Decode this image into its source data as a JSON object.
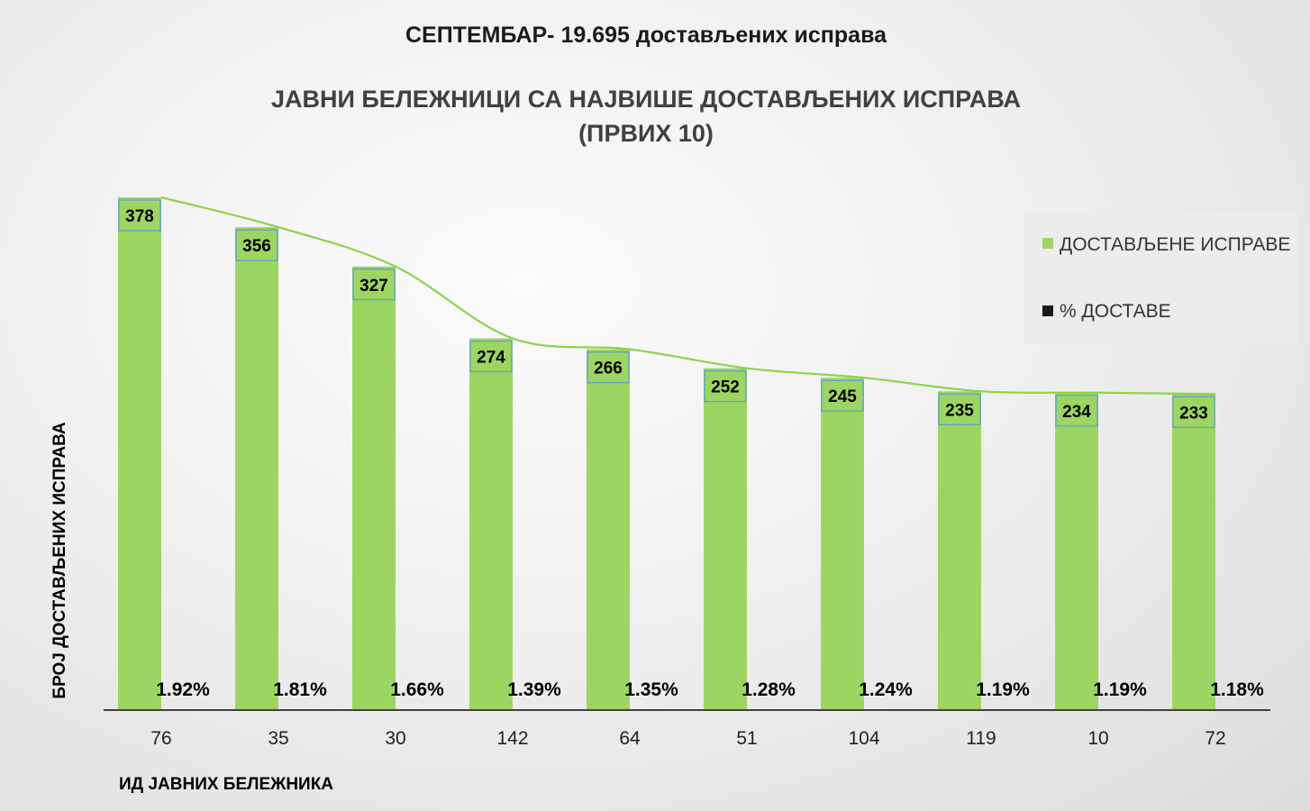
{
  "title": "СЕПТЕМБАР- 19.695 достављених исправа",
  "subtitle_line1": "ЈАВНИ БЕЛЕЖНИЦИ СА НАЈВИШЕ ДОСТАВЉЕНИХ ИСПРАВА",
  "subtitle_line2": "(ПРВИХ 10)",
  "colors": {
    "bar": "#9dd563",
    "trendline": "#8cd34a",
    "label_box_border": "#5b9bd5",
    "pct_series": "#1a1a1a"
  },
  "chart_data": {
    "type": "bar",
    "categories": [
      "76",
      "35",
      "30",
      "142",
      "64",
      "51",
      "104",
      "119",
      "10",
      "72"
    ],
    "series": [
      {
        "name": "ДОСТАВЉЕНЕ ИСПРАВЕ",
        "values": [
          378,
          356,
          327,
          274,
          266,
          252,
          245,
          235,
          234,
          233
        ]
      },
      {
        "name": "% ДОСТАВЕ",
        "values": [
          1.92,
          1.81,
          1.66,
          1.39,
          1.35,
          1.28,
          1.24,
          1.19,
          1.19,
          1.18
        ],
        "labels": [
          "1.92%",
          "1.81%",
          "1.66%",
          "1.39%",
          "1.35%",
          "1.28%",
          "1.24%",
          "1.19%",
          "1.19%",
          "1.18%"
        ]
      }
    ],
    "trendline": "smoothed curve through bar tops",
    "xlabel": "ИД ЈАВНИХ БЕЛЕЖНИКА",
    "ylabel": "БРОЈ ДОСТАВЉЕНИХ ИСПРАВА",
    "ylim": [
      0,
      378
    ],
    "grid": false,
    "legend": "right",
    "legend_entries": [
      "ДОСТАВЉЕНЕ ИСПРАВЕ",
      "% ДОСТАВЕ"
    ]
  }
}
